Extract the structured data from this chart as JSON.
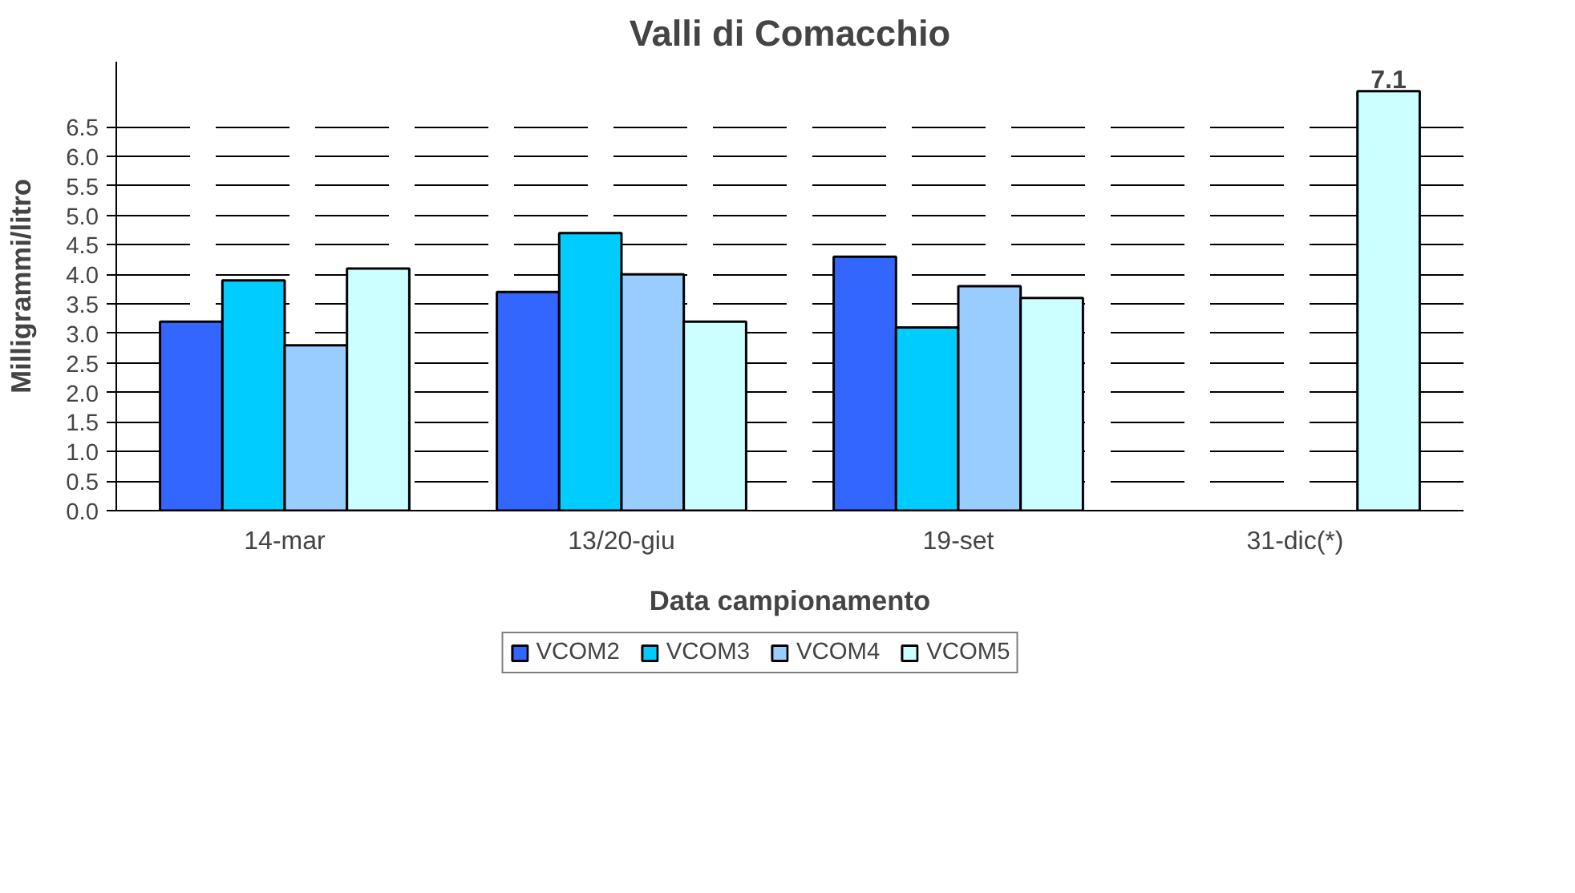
{
  "chart_data": {
    "type": "bar",
    "title": "Valli di Comacchio",
    "xlabel": "Data campionamento",
    "ylabel": "Milligrammi/litro",
    "categories": [
      "14-mar",
      "13/20-giu",
      "19-set",
      "31-dic(*)"
    ],
    "series": [
      {
        "name": "VCOM2",
        "color": "#3366ff",
        "values": [
          3.2,
          3.7,
          4.3,
          null
        ]
      },
      {
        "name": "VCOM3",
        "color": "#00ccff",
        "values": [
          3.9,
          4.7,
          3.1,
          null
        ]
      },
      {
        "name": "VCOM4",
        "color": "#99ccff",
        "values": [
          2.8,
          4.0,
          3.8,
          null
        ]
      },
      {
        "name": "VCOM5",
        "color": "#ccffff",
        "values": [
          4.1,
          3.2,
          3.6,
          7.1
        ],
        "value_labels": [
          null,
          null,
          null,
          "7.1"
        ]
      }
    ],
    "ylim": [
      0,
      7.6
    ],
    "yticks": [
      {
        "value": 0,
        "label": "0.0"
      },
      {
        "value": 0.5,
        "label": "0.5"
      },
      {
        "value": 1,
        "label": "1.0"
      },
      {
        "value": 1.5,
        "label": "1.5"
      },
      {
        "value": 2,
        "label": "2.0"
      },
      {
        "value": 2.5,
        "label": "2.5"
      },
      {
        "value": 3,
        "label": "3.0"
      },
      {
        "value": 3.5,
        "label": "3.5"
      },
      {
        "value": 4,
        "label": "4.0"
      },
      {
        "value": 4.5,
        "label": "4.5"
      },
      {
        "value": 5,
        "label": "5.0"
      },
      {
        "value": 5.5,
        "label": "5.5"
      },
      {
        "value": 6,
        "label": "6.0"
      },
      {
        "value": 6.5,
        "label": "6.5"
      }
    ],
    "grid": "y",
    "legend": "bottom"
  }
}
